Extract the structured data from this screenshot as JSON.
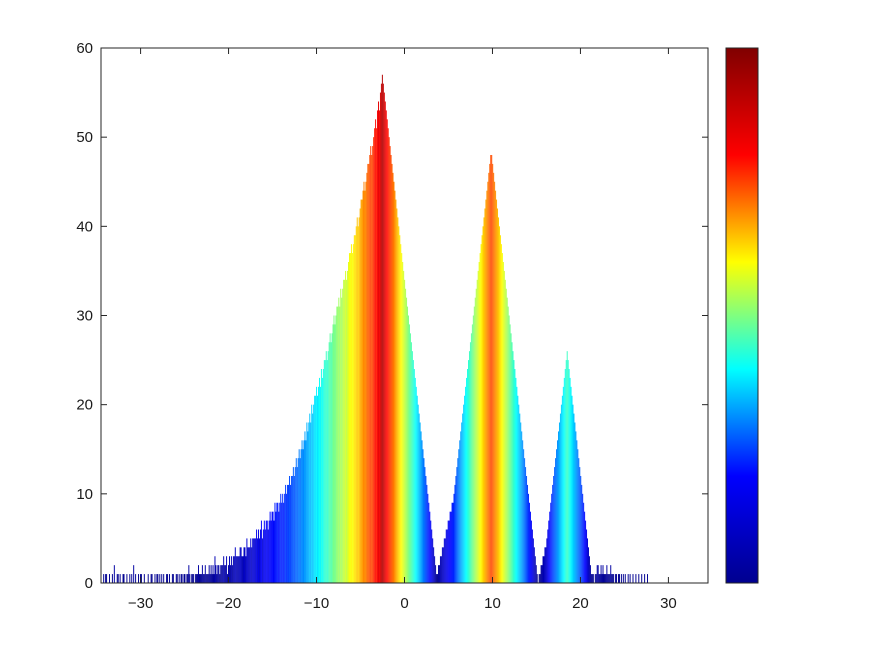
{
  "chart_data": {
    "type": "bar",
    "title": "",
    "xlabel": "",
    "ylabel": "",
    "xlim": [
      -34.5,
      34.5
    ],
    "ylim": [
      0,
      60
    ],
    "x_ticks": [
      -30,
      -20,
      -10,
      0,
      10,
      20,
      30
    ],
    "x_tick_labels": [
      "−30",
      "−20",
      "−10",
      "0",
      "10",
      "20",
      "30"
    ],
    "y_ticks": [
      0,
      10,
      20,
      30,
      40,
      50,
      60
    ],
    "y_tick_labels": [
      "0",
      "10",
      "20",
      "30",
      "40",
      "50",
      "60"
    ],
    "bin_start": -34.25,
    "bin_width": 0.11,
    "counts": [
      1,
      0,
      1,
      1,
      0,
      0,
      1,
      0,
      0,
      1,
      0,
      2,
      0,
      0,
      1,
      1,
      0,
      1,
      0,
      0,
      1,
      1,
      0,
      0,
      1,
      0,
      0,
      1,
      0,
      1,
      0,
      2,
      0,
      1,
      0,
      0,
      1,
      0,
      1,
      1,
      0,
      0,
      1,
      0,
      0,
      0,
      1,
      0,
      0,
      1,
      1,
      0,
      0,
      1,
      0,
      1,
      1,
      0,
      1,
      0,
      1,
      0,
      1,
      0,
      0,
      1,
      1,
      0,
      1,
      0,
      0,
      1,
      1,
      0,
      0,
      1,
      1,
      0,
      1,
      0,
      1,
      1,
      0,
      1,
      1,
      0,
      1,
      1,
      2,
      1,
      0,
      1,
      1,
      1,
      0,
      1,
      1,
      1,
      2,
      1,
      1,
      1,
      2,
      1,
      1,
      2,
      1,
      1,
      1,
      2,
      1,
      2,
      1,
      2,
      1,
      3,
      2,
      1,
      2,
      2,
      1,
      2,
      2,
      2,
      3,
      2,
      2,
      3,
      1,
      2,
      3,
      2,
      3,
      2,
      3,
      3,
      4,
      3,
      3,
      3,
      3,
      4,
      4,
      3,
      3,
      4,
      4,
      3,
      5,
      4,
      4,
      4,
      5,
      4,
      5,
      5,
      5,
      5,
      6,
      5,
      6,
      5,
      6,
      7,
      5,
      6,
      7,
      6,
      7,
      7,
      6,
      7,
      8,
      7,
      8,
      8,
      7,
      9,
      8,
      9,
      9,
      8,
      9,
      10,
      9,
      10,
      9,
      10,
      11,
      10,
      11,
      11,
      12,
      11,
      12,
      12,
      13,
      12,
      13,
      14,
      13,
      14,
      15,
      14,
      15,
      16,
      15,
      16,
      17,
      16,
      18,
      17,
      18,
      19,
      18,
      20,
      19,
      20,
      21,
      21,
      22,
      21,
      22,
      23,
      22,
      24,
      23,
      24,
      25,
      25,
      26,
      25,
      26,
      27,
      28,
      27,
      28,
      29,
      30,
      29,
      30,
      31,
      31,
      32,
      31,
      33,
      32,
      33,
      34,
      34,
      35,
      34,
      35,
      36,
      37,
      37,
      38,
      37,
      38,
      39,
      39,
      40,
      41,
      40,
      41,
      42,
      43,
      43,
      44,
      45,
      44,
      45,
      46,
      47,
      47,
      48,
      49,
      48,
      49,
      50,
      51,
      52,
      51,
      53,
      54,
      53,
      55,
      56,
      57,
      56,
      55,
      54,
      53,
      52,
      51,
      50,
      49,
      48,
      47,
      46,
      45,
      44,
      43,
      42,
      41,
      40,
      39,
      38,
      37,
      36,
      35,
      34,
      33,
      32,
      31,
      30,
      29,
      28,
      27,
      26,
      25,
      24,
      23,
      22,
      21,
      20,
      19,
      18,
      17,
      16,
      15,
      14,
      13,
      12,
      11,
      10,
      9,
      8,
      7,
      6,
      5,
      4,
      3,
      2,
      1,
      1,
      2,
      2,
      3,
      3,
      4,
      4,
      5,
      5,
      6,
      6,
      7,
      7,
      8,
      8,
      9,
      9,
      10,
      11,
      12,
      13,
      14,
      15,
      16,
      17,
      18,
      19,
      20,
      21,
      22,
      23,
      24,
      25,
      26,
      27,
      28,
      29,
      30,
      31,
      32,
      33,
      34,
      35,
      36,
      37,
      38,
      39,
      40,
      41,
      42,
      43,
      44,
      45,
      46,
      47,
      48,
      48,
      47,
      46,
      45,
      44,
      43,
      42,
      41,
      40,
      39,
      38,
      37,
      36,
      35,
      34,
      33,
      32,
      31,
      30,
      29,
      28,
      27,
      26,
      25,
      24,
      23,
      22,
      21,
      20,
      19,
      18,
      17,
      16,
      15,
      14,
      13,
      12,
      11,
      10,
      9,
      8,
      7,
      6,
      5,
      4,
      3,
      2,
      1,
      0,
      1,
      1,
      2,
      2,
      3,
      3,
      4,
      4,
      5,
      6,
      7,
      8,
      9,
      10,
      11,
      12,
      13,
      14,
      15,
      16,
      17,
      18,
      19,
      20,
      21,
      22,
      23,
      24,
      25,
      26,
      25,
      24,
      23,
      22,
      21,
      20,
      19,
      18,
      17,
      16,
      15,
      14,
      13,
      12,
      11,
      10,
      9,
      8,
      7,
      6,
      5,
      4,
      3,
      2,
      1,
      1,
      1,
      0,
      1,
      1,
      2,
      2,
      1,
      1,
      2,
      1,
      2,
      1,
      1,
      1,
      2,
      1,
      1,
      1,
      2,
      1,
      1,
      1,
      0,
      1,
      1,
      0,
      1,
      1,
      0,
      1,
      0,
      1,
      0,
      1,
      0,
      0,
      1,
      0,
      1,
      0,
      0,
      1,
      0,
      0,
      1,
      0,
      0,
      1,
      0,
      0,
      1,
      0,
      0,
      1,
      0,
      0,
      1
    ],
    "colorbar": {
      "colormap": "jet",
      "range": [
        0,
        60
      ],
      "stops": [
        "#00008f",
        "#0000ff",
        "#00ffff",
        "#ffff00",
        "#ff0000",
        "#800000"
      ]
    }
  }
}
